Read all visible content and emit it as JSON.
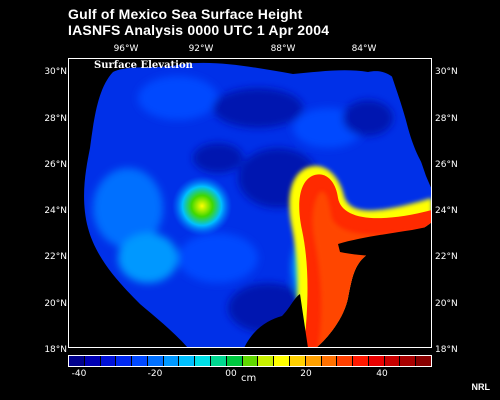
{
  "title_line1": "Gulf of Mexico Sea Surface Height",
  "title_line2": "IASNFS Analysis  0000 UTC  1 Apr 2004",
  "map_label": "Surface Elevation",
  "lon_labels": [
    "96°W",
    "92°W",
    "88°W",
    "84°W"
  ],
  "lat_labels": [
    "30°N",
    "28°N",
    "26°N",
    "24°N",
    "22°N",
    "20°N",
    "18°N"
  ],
  "scale": {
    "ticks": [
      "-40",
      "-20",
      "00",
      "20",
      "40"
    ],
    "unit": "cm",
    "colors": [
      "#00008b",
      "#0000b4",
      "#0010d8",
      "#0028f0",
      "#0048ff",
      "#0070ff",
      "#0098ff",
      "#00c0ff",
      "#00e0e8",
      "#00d890",
      "#00c840",
      "#60d800",
      "#c8f000",
      "#ffff00",
      "#ffd000",
      "#ffa000",
      "#ff7000",
      "#ff4000",
      "#ff1800",
      "#e80000",
      "#c80000",
      "#a80000",
      "#880000"
    ]
  },
  "credit": "NRL",
  "colors": {
    "land": "#000000",
    "ocean_deep_blue": "#0030e8",
    "ocean_dark": "#0018b0",
    "loop_current": "#ff2a00",
    "front": "#ffff00"
  }
}
